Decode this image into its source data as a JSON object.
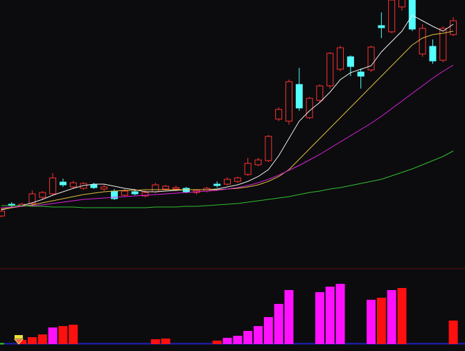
{
  "chart_data": [
    {
      "type": "candlestick",
      "ylim": [
        0,
        330
      ],
      "up_color": "#ff3232",
      "down_color": "#54ffff",
      "open": [
        18,
        35,
        33,
        36,
        45,
        50,
        67,
        60,
        58,
        63,
        57,
        54,
        48,
        53,
        47,
        53,
        57,
        57,
        58,
        52,
        54,
        64,
        64,
        68,
        78,
        92,
        98,
        158,
        155,
        208,
        160,
        185,
        206,
        230,
        248,
        226,
        229,
        293,
        284,
        320,
        330,
        252,
        263,
        243,
        280
      ],
      "close": [
        25,
        33,
        35,
        50,
        52,
        73,
        63,
        66,
        65,
        59,
        60,
        43,
        54,
        50,
        52,
        63,
        61,
        59,
        53,
        55,
        58,
        62,
        71,
        73,
        94,
        99,
        133,
        172,
        212,
        174,
        188,
        206,
        253,
        261,
        234,
        220,
        262,
        290,
        330,
        350,
        288,
        289,
        242,
        289,
        300
      ],
      "high": [
        30,
        38,
        37,
        55,
        54,
        80,
        72,
        69,
        67,
        66,
        64,
        57,
        57,
        55,
        55,
        66,
        63,
        62,
        60,
        57,
        60,
        68,
        74,
        75,
        102,
        102,
        135,
        175,
        215,
        232,
        190,
        208,
        255,
        264,
        250,
        231,
        264,
        312,
        335,
        355,
        340,
        295,
        273,
        292,
        305
      ],
      "low": [
        16,
        30,
        31,
        34,
        42,
        48,
        60,
        58,
        56,
        57,
        54,
        41,
        46,
        48,
        45,
        51,
        55,
        54,
        51,
        49,
        52,
        59,
        62,
        66,
        76,
        90,
        96,
        155,
        150,
        170,
        158,
        182,
        202,
        227,
        220,
        202,
        226,
        275,
        282,
        315,
        285,
        248,
        238,
        240,
        278
      ],
      "lines": [
        {
          "color": "#f0f0f0",
          "values": [
            27,
            30,
            33,
            37,
            42,
            48,
            53,
            58,
            62,
            64,
            64,
            61,
            58,
            56,
            53,
            53,
            54,
            55,
            56,
            56,
            56,
            57,
            60,
            63,
            68,
            75,
            85,
            105,
            130,
            155,
            170,
            182,
            197,
            215,
            225,
            230,
            235,
            255,
            270,
            285,
            308,
            300,
            292,
            285,
            295
          ]
        },
        {
          "color": "#e0c040",
          "values": [
            28,
            30,
            32,
            34,
            37,
            40,
            43,
            46,
            49,
            51,
            53,
            54,
            55,
            55,
            56,
            56,
            56,
            56,
            56,
            56,
            56,
            56,
            57,
            58,
            60,
            63,
            68,
            75,
            85,
            100,
            115,
            130,
            145,
            160,
            175,
            190,
            205,
            220,
            235,
            250,
            265,
            275,
            280,
            282,
            285
          ]
        },
        {
          "color": "#e020e0",
          "values": [
            30,
            31,
            32,
            33,
            34,
            36,
            38,
            40,
            42,
            43,
            44,
            45,
            46,
            47,
            48,
            49,
            50,
            51,
            52,
            53,
            54,
            55,
            57,
            59,
            62,
            66,
            71,
            77,
            84,
            91,
            99,
            107,
            116,
            125,
            134,
            143,
            152,
            162,
            173,
            184,
            195,
            206,
            217,
            227,
            236
          ]
        },
        {
          "color": "#30c030",
          "values": [
            33,
            33,
            33,
            32,
            32,
            31,
            31,
            31,
            30,
            30,
            30,
            30,
            30,
            30,
            30,
            31,
            31,
            31,
            32,
            32,
            33,
            34,
            35,
            36,
            38,
            40,
            42,
            44,
            46,
            49,
            52,
            54,
            57,
            59,
            62,
            65,
            68,
            71,
            76,
            81,
            86,
            92,
            98,
            104,
            112
          ]
        }
      ]
    },
    {
      "type": "bar",
      "ylim": [
        0,
        110
      ],
      "values": [
        0,
        0,
        6,
        10,
        14,
        24,
        26,
        28,
        0,
        0,
        0,
        0,
        0,
        0,
        0,
        7,
        8,
        0,
        0,
        0,
        0,
        5,
        9,
        12,
        19,
        26,
        39,
        58,
        78,
        0,
        0,
        75,
        83,
        87,
        0,
        0,
        64,
        67,
        78,
        81,
        0,
        0,
        0,
        0,
        34
      ],
      "colors": [
        "#ff1010",
        "#ff1010",
        "#ff1010",
        "#ff1010",
        "#ff1010",
        "#ff10ff",
        "#ff1010",
        "#ff1010",
        "#ff1010",
        "#ff1010",
        "#ff1010",
        "#ff1010",
        "#ff1010",
        "#ff1010",
        "#ff1010",
        "#ff1010",
        "#ff1010",
        "#ff1010",
        "#ff1010",
        "#ff1010",
        "#ff1010",
        "#ff1010",
        "#ff10ff",
        "#ff10ff",
        "#ff10ff",
        "#ff10ff",
        "#ff10ff",
        "#ff10ff",
        "#ff10ff",
        "#ff10ff",
        "#ff10ff",
        "#ff10ff",
        "#ff10ff",
        "#ff10ff",
        "#ff10ff",
        "#ff10ff",
        "#ff10ff",
        "#ff1010",
        "#ff10ff",
        "#ff1010",
        "#ff1010",
        "#ff1010",
        "#ff1010",
        "#ff1010",
        "#ff1010"
      ]
    }
  ]
}
